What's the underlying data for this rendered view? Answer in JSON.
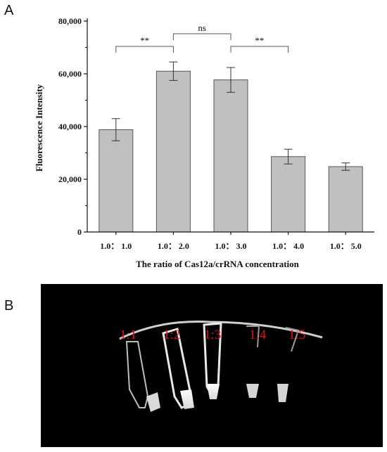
{
  "panel_a": {
    "label": "A"
  },
  "panel_b": {
    "label": "B",
    "tube_labels": [
      "1:1",
      "1:2",
      "1:3",
      "1:4",
      "1:5"
    ],
    "label_color": "#e01020"
  },
  "chart_data": {
    "type": "bar",
    "xlabel": "The ratio of Cas12a/crRNA concentration",
    "ylabel": "Fluorescence Intensity",
    "categories": [
      "1.0： 1.0",
      "1.0： 2.0",
      "1.0： 3.0",
      "1.0： 4.0",
      "1.0： 5.0"
    ],
    "values": [
      38800,
      61000,
      57700,
      28600,
      24800
    ],
    "errors": [
      4200,
      3500,
      4700,
      2800,
      1400
    ],
    "ylim": [
      0,
      80000
    ],
    "yticks": [
      0,
      20000,
      40000,
      60000,
      80000
    ],
    "ytick_labels": [
      "0",
      "20,000",
      "40,000",
      "60,000",
      "80,000"
    ],
    "bar_color": "#c0c0c0",
    "significance": [
      {
        "from": 0,
        "to": 1,
        "label": "**"
      },
      {
        "from": 1,
        "to": 2,
        "label": "ns"
      },
      {
        "from": 2,
        "to": 3,
        "label": "**"
      }
    ]
  }
}
